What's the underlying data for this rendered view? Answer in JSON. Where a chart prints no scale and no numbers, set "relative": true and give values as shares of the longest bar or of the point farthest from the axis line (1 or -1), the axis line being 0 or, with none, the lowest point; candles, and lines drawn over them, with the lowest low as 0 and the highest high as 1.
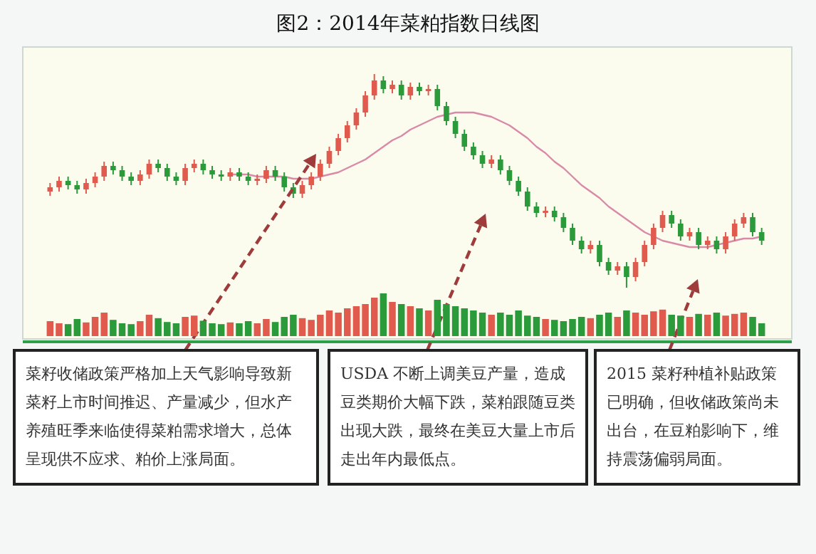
{
  "chart_data": [
    {
      "type": "candlestick",
      "title": "图2：2014年菜粕指数日线图",
      "relative": true,
      "categories": [
        null,
        null,
        null,
        null,
        null,
        null,
        null,
        null,
        null,
        null,
        null,
        null,
        null,
        null,
        null,
        null,
        null,
        null,
        null,
        null,
        null,
        null,
        null,
        null,
        null,
        null,
        null,
        null,
        null,
        null,
        null,
        null,
        null,
        null,
        null,
        null,
        null,
        null,
        null,
        null,
        null,
        null,
        null,
        null,
        null,
        null,
        null,
        null,
        null,
        null,
        null,
        null,
        null,
        null,
        null,
        null,
        null,
        null,
        null,
        null,
        null,
        null,
        null,
        null,
        null,
        null,
        null,
        null,
        null,
        null,
        null,
        null,
        null,
        null,
        null,
        null,
        null,
        null,
        null,
        null
      ],
      "ohlc": [
        [
          0.45,
          0.49,
          0.43,
          0.47
        ],
        [
          0.47,
          0.52,
          0.45,
          0.5
        ],
        [
          0.5,
          0.52,
          0.46,
          0.48
        ],
        [
          0.48,
          0.5,
          0.44,
          0.46
        ],
        [
          0.46,
          0.51,
          0.44,
          0.49
        ],
        [
          0.49,
          0.54,
          0.47,
          0.52
        ],
        [
          0.52,
          0.59,
          0.5,
          0.57
        ],
        [
          0.57,
          0.59,
          0.53,
          0.55
        ],
        [
          0.55,
          0.57,
          0.5,
          0.52
        ],
        [
          0.52,
          0.54,
          0.48,
          0.5
        ],
        [
          0.5,
          0.55,
          0.48,
          0.53
        ],
        [
          0.53,
          0.6,
          0.51,
          0.58
        ],
        [
          0.58,
          0.6,
          0.54,
          0.56
        ],
        [
          0.56,
          0.58,
          0.5,
          0.52
        ],
        [
          0.52,
          0.54,
          0.48,
          0.5
        ],
        [
          0.5,
          0.58,
          0.48,
          0.56
        ],
        [
          0.56,
          0.6,
          0.54,
          0.58
        ],
        [
          0.58,
          0.6,
          0.53,
          0.55
        ],
        [
          0.55,
          0.57,
          0.51,
          0.53
        ],
        [
          0.53,
          0.55,
          0.5,
          0.52
        ],
        [
          0.52,
          0.56,
          0.5,
          0.54
        ],
        [
          0.54,
          0.56,
          0.5,
          0.52
        ],
        [
          0.52,
          0.54,
          0.48,
          0.5
        ],
        [
          0.5,
          0.53,
          0.48,
          0.51
        ],
        [
          0.51,
          0.57,
          0.49,
          0.55
        ],
        [
          0.55,
          0.57,
          0.5,
          0.52
        ],
        [
          0.52,
          0.54,
          0.45,
          0.47
        ],
        [
          0.47,
          0.49,
          0.42,
          0.44
        ],
        [
          0.44,
          0.5,
          0.42,
          0.48
        ],
        [
          0.48,
          0.54,
          0.46,
          0.52
        ],
        [
          0.52,
          0.6,
          0.5,
          0.58
        ],
        [
          0.58,
          0.66,
          0.56,
          0.64
        ],
        [
          0.64,
          0.72,
          0.62,
          0.7
        ],
        [
          0.7,
          0.78,
          0.68,
          0.76
        ],
        [
          0.76,
          0.84,
          0.74,
          0.82
        ],
        [
          0.82,
          0.92,
          0.8,
          0.9
        ],
        [
          0.9,
          1,
          0.88,
          0.97
        ],
        [
          0.97,
          0.99,
          0.91,
          0.93
        ],
        [
          0.93,
          0.97,
          0.91,
          0.95
        ],
        [
          0.95,
          0.97,
          0.88,
          0.9
        ],
        [
          0.9,
          0.96,
          0.88,
          0.94
        ],
        [
          0.94,
          0.96,
          0.9,
          0.92
        ],
        [
          0.92,
          0.95,
          0.9,
          0.93
        ],
        [
          0.93,
          0.95,
          0.83,
          0.85
        ],
        [
          0.85,
          0.87,
          0.76,
          0.78
        ],
        [
          0.78,
          0.8,
          0.7,
          0.72
        ],
        [
          0.72,
          0.74,
          0.64,
          0.66
        ],
        [
          0.66,
          0.68,
          0.6,
          0.62
        ],
        [
          0.62,
          0.64,
          0.56,
          0.58
        ],
        [
          0.58,
          0.62,
          0.56,
          0.6
        ],
        [
          0.6,
          0.62,
          0.53,
          0.55
        ],
        [
          0.55,
          0.57,
          0.48,
          0.5
        ],
        [
          0.5,
          0.52,
          0.43,
          0.45
        ],
        [
          0.45,
          0.47,
          0.36,
          0.38
        ],
        [
          0.38,
          0.4,
          0.33,
          0.35
        ],
        [
          0.35,
          0.38,
          0.33,
          0.36
        ],
        [
          0.36,
          0.38,
          0.31,
          0.33
        ],
        [
          0.33,
          0.35,
          0.26,
          0.28
        ],
        [
          0.28,
          0.3,
          0.2,
          0.22
        ],
        [
          0.22,
          0.24,
          0.16,
          0.18
        ],
        [
          0.18,
          0.22,
          0.16,
          0.2
        ],
        [
          0.2,
          0.22,
          0.1,
          0.12
        ],
        [
          0.12,
          0.14,
          0.06,
          0.08
        ],
        [
          0.08,
          0.12,
          0.06,
          0.1
        ],
        [
          0.1,
          0.12,
          0,
          0.05
        ],
        [
          0.05,
          0.14,
          0.03,
          0.12
        ],
        [
          0.12,
          0.22,
          0.1,
          0.2
        ],
        [
          0.2,
          0.3,
          0.18,
          0.28
        ],
        [
          0.28,
          0.36,
          0.26,
          0.34
        ],
        [
          0.34,
          0.36,
          0.28,
          0.3
        ],
        [
          0.3,
          0.32,
          0.22,
          0.24
        ],
        [
          0.24,
          0.28,
          0.22,
          0.26
        ],
        [
          0.26,
          0.28,
          0.18,
          0.2
        ],
        [
          0.2,
          0.24,
          0.18,
          0.22
        ],
        [
          0.22,
          0.24,
          0.16,
          0.18
        ],
        [
          0.18,
          0.26,
          0.16,
          0.24
        ],
        [
          0.24,
          0.32,
          0.22,
          0.3
        ],
        [
          0.3,
          0.35,
          0.28,
          0.33
        ],
        [
          0.33,
          0.35,
          0.24,
          0.26
        ],
        [
          0.26,
          0.28,
          0.2,
          0.22
        ]
      ],
      "colors": [
        "#e05a4e",
        "#e05a4e",
        "#2a9a3a",
        "#2a9a3a",
        "#e05a4e",
        "#e05a4e",
        "#e05a4e",
        "#2a9a3a",
        "#2a9a3a",
        "#2a9a3a",
        "#e05a4e",
        "#e05a4e",
        "#2a9a3a",
        "#2a9a3a",
        "#2a9a3a",
        "#e05a4e",
        "#e05a4e",
        "#2a9a3a",
        "#2a9a3a",
        "#2a9a3a",
        "#e05a4e",
        "#2a9a3a",
        "#2a9a3a",
        "#e05a4e",
        "#e05a4e",
        "#2a9a3a",
        "#2a9a3a",
        "#2a9a3a",
        "#e05a4e",
        "#e05a4e",
        "#e05a4e",
        "#e05a4e",
        "#e05a4e",
        "#e05a4e",
        "#e05a4e",
        "#e05a4e",
        "#e05a4e",
        "#2a9a3a",
        "#e05a4e",
        "#2a9a3a",
        "#e05a4e",
        "#2a9a3a",
        "#e05a4e",
        "#2a9a3a",
        "#2a9a3a",
        "#2a9a3a",
        "#2a9a3a",
        "#2a9a3a",
        "#2a9a3a",
        "#e05a4e",
        "#2a9a3a",
        "#2a9a3a",
        "#2a9a3a",
        "#2a9a3a",
        "#2a9a3a",
        "#e05a4e",
        "#2a9a3a",
        "#2a9a3a",
        "#2a9a3a",
        "#2a9a3a",
        "#e05a4e",
        "#2a9a3a",
        "#2a9a3a",
        "#e05a4e",
        "#2a9a3a",
        "#e05a4e",
        "#e05a4e",
        "#e05a4e",
        "#e05a4e",
        "#2a9a3a",
        "#2a9a3a",
        "#e05a4e",
        "#2a9a3a",
        "#e05a4e",
        "#2a9a3a",
        "#e05a4e",
        "#e05a4e",
        "#e05a4e",
        "#2a9a3a",
        "#2a9a3a"
      ],
      "series": [
        {
          "type": "line",
          "color": "#d88aa8",
          "values": [
            null,
            null,
            null,
            null,
            null,
            null,
            null,
            null,
            null,
            null,
            null,
            null,
            null,
            null,
            null,
            null,
            null,
            null,
            null,
            null,
            0.53,
            0.53,
            0.53,
            0.52,
            0.52,
            0.52,
            0.52,
            0.51,
            0.51,
            0.51,
            0.52,
            0.53,
            0.54,
            0.56,
            0.58,
            0.6,
            0.63,
            0.66,
            0.69,
            0.71,
            0.74,
            0.76,
            0.78,
            0.8,
            0.81,
            0.82,
            0.82,
            0.82,
            0.81,
            0.8,
            0.78,
            0.76,
            0.73,
            0.7,
            0.66,
            0.63,
            0.59,
            0.56,
            0.52,
            0.48,
            0.45,
            0.42,
            0.38,
            0.35,
            0.32,
            0.29,
            0.26,
            0.24,
            0.22,
            0.21,
            0.2,
            0.19,
            0.19,
            0.19,
            0.2,
            0.21,
            0.22,
            0.23,
            0.23,
            0.24
          ]
        }
      ],
      "annotations": [
        "菜籽收储政策严格加上天气影响导致新菜籽上市时间推迟、产量减少，但水产养殖旺季来临使得菜粕需求增大，总体呈现供不应求、粕价上涨局面。",
        "USDA 不断上调美豆产量，造成豆类期价大幅下跌，菜粕跟随豆类出现大跌，最终在美豆大量上市后走出年内最低点。",
        "2015 菜籽种植补贴政策已明确，但收储政策尚未出台，在豆粕影响下，维持震荡偏弱局面。"
      ]
    },
    {
      "type": "bar",
      "relative": true,
      "categories": [
        null,
        null,
        null,
        null,
        null,
        null,
        null,
        null,
        null,
        null,
        null,
        null,
        null,
        null,
        null,
        null,
        null,
        null,
        null,
        null,
        null,
        null,
        null,
        null,
        null,
        null,
        null,
        null,
        null,
        null,
        null,
        null,
        null,
        null,
        null,
        null,
        null,
        null,
        null,
        null,
        null,
        null,
        null,
        null,
        null,
        null,
        null,
        null,
        null,
        null,
        null,
        null,
        null,
        null,
        null,
        null,
        null,
        null,
        null,
        null,
        null,
        null,
        null,
        null,
        null,
        null,
        null,
        null,
        null,
        null,
        null,
        null,
        null,
        null,
        null,
        null,
        null,
        null,
        null,
        null
      ],
      "values": [
        0.35,
        0.3,
        0.28,
        0.4,
        0.32,
        0.45,
        0.55,
        0.38,
        0.3,
        0.28,
        0.35,
        0.5,
        0.42,
        0.33,
        0.3,
        0.45,
        0.48,
        0.36,
        0.3,
        0.28,
        0.32,
        0.3,
        0.35,
        0.3,
        0.4,
        0.33,
        0.45,
        0.5,
        0.42,
        0.38,
        0.5,
        0.6,
        0.55,
        0.65,
        0.7,
        0.75,
        0.9,
        1,
        0.8,
        0.75,
        0.7,
        0.65,
        0.6,
        0.85,
        0.75,
        0.7,
        0.65,
        0.6,
        0.55,
        0.5,
        0.55,
        0.5,
        0.6,
        0.48,
        0.45,
        0.4,
        0.38,
        0.35,
        0.4,
        0.45,
        0.42,
        0.5,
        0.55,
        0.45,
        0.6,
        0.55,
        0.5,
        0.58,
        0.62,
        0.5,
        0.48,
        0.45,
        0.52,
        0.5,
        0.55,
        0.48,
        0.52,
        0.55,
        0.45,
        0.3
      ],
      "colors": [
        "#e05a4e",
        "#e05a4e",
        "#2a9a3a",
        "#2a9a3a",
        "#e05a4e",
        "#e05a4e",
        "#e05a4e",
        "#2a9a3a",
        "#2a9a3a",
        "#2a9a3a",
        "#e05a4e",
        "#e05a4e",
        "#2a9a3a",
        "#2a9a3a",
        "#2a9a3a",
        "#e05a4e",
        "#e05a4e",
        "#2a9a3a",
        "#2a9a3a",
        "#2a9a3a",
        "#e05a4e",
        "#2a9a3a",
        "#2a9a3a",
        "#e05a4e",
        "#e05a4e",
        "#2a9a3a",
        "#2a9a3a",
        "#2a9a3a",
        "#e05a4e",
        "#e05a4e",
        "#e05a4e",
        "#e05a4e",
        "#e05a4e",
        "#e05a4e",
        "#e05a4e",
        "#e05a4e",
        "#e05a4e",
        "#2a9a3a",
        "#e05a4e",
        "#2a9a3a",
        "#e05a4e",
        "#2a9a3a",
        "#e05a4e",
        "#2a9a3a",
        "#2a9a3a",
        "#2a9a3a",
        "#2a9a3a",
        "#2a9a3a",
        "#2a9a3a",
        "#e05a4e",
        "#2a9a3a",
        "#2a9a3a",
        "#2a9a3a",
        "#2a9a3a",
        "#2a9a3a",
        "#e05a4e",
        "#2a9a3a",
        "#2a9a3a",
        "#2a9a3a",
        "#2a9a3a",
        "#e05a4e",
        "#2a9a3a",
        "#2a9a3a",
        "#e05a4e",
        "#2a9a3a",
        "#e05a4e",
        "#e05a4e",
        "#e05a4e",
        "#e05a4e",
        "#2a9a3a",
        "#2a9a3a",
        "#e05a4e",
        "#2a9a3a",
        "#e05a4e",
        "#2a9a3a",
        "#e05a4e",
        "#e05a4e",
        "#e05a4e",
        "#2a9a3a",
        "#2a9a3a"
      ]
    }
  ]
}
